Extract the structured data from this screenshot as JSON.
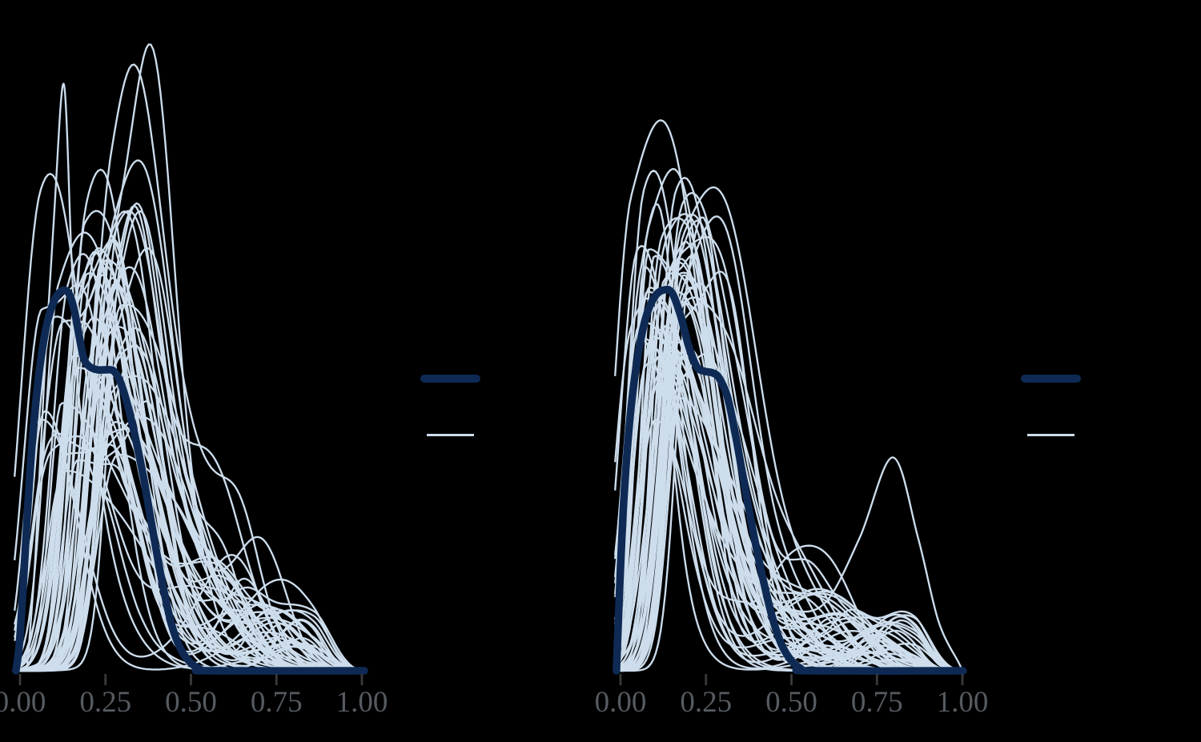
{
  "figure": {
    "background": "#000000",
    "title": ""
  },
  "colors": {
    "y_line": "#0e2a54",
    "y_rep_line": "#cdddec",
    "tick_mark": "#3a3a3a",
    "tick_label": "#555b61"
  },
  "legend": {
    "items": [
      {
        "id": "y",
        "label": "",
        "swatch": "thick-dark-line"
      },
      {
        "id": "y_rep",
        "label": "",
        "swatch": "thin-light-line"
      }
    ]
  },
  "chart_data": {
    "type": "area",
    "subtype": "density_overlay_ppc",
    "title": "",
    "xlabel": "",
    "ylabel": "",
    "x_range": [
      -0.02,
      1.01
    ],
    "y_range_density": [
      0,
      1.6
    ],
    "grid": false,
    "legend_position": "right-of-panel",
    "panels": [
      {
        "id": "panel-1",
        "x_axis": {
          "ticks": [
            0,
            0.25,
            0.5,
            0.75,
            1.0
          ],
          "tick_labels": [
            "0.00",
            "0.25",
            "0.50",
            "0.75",
            "1.00"
          ]
        },
        "series": [
          {
            "name": "y",
            "role": "observed",
            "points": [
              [
                -0.012,
                0
              ],
              [
                -0.002,
                0.069
              ],
              [
                0.009,
                0.216
              ],
              [
                0.021,
                0.406
              ],
              [
                0.037,
                0.616
              ],
              [
                0.056,
                0.784
              ],
              [
                0.077,
                0.903
              ],
              [
                0.101,
                0.973
              ],
              [
                0.124,
                0.998
              ],
              [
                0.143,
                0.99
              ],
              [
                0.159,
                0.945
              ],
              [
                0.173,
                0.878
              ],
              [
                0.187,
                0.819
              ],
              [
                0.204,
                0.798
              ],
              [
                0.227,
                0.79
              ],
              [
                0.251,
                0.79
              ],
              [
                0.272,
                0.788
              ],
              [
                0.288,
                0.769
              ],
              [
                0.304,
                0.731
              ],
              [
                0.323,
                0.668
              ],
              [
                0.344,
                0.584
              ],
              [
                0.365,
                0.489
              ],
              [
                0.391,
                0.353
              ],
              [
                0.417,
                0.227
              ],
              [
                0.443,
                0.122
              ],
              [
                0.471,
                0.055
              ],
              [
                0.499,
                0.021
              ],
              [
                0.527,
                0.004
              ],
              [
                0.555,
                0
              ],
              [
                1.007,
                0
              ]
            ]
          }
        ],
        "feature_rep_lines": [
          [
            [
              0.02,
              0
            ],
            [
              0.045,
              0.3
            ],
            [
              0.07,
              0.75
            ],
            [
              0.1,
              1.2
            ],
            [
              0.128,
              1.54
            ],
            [
              0.15,
              1.1
            ],
            [
              0.165,
              0.8
            ],
            [
              0.185,
              0.62
            ],
            [
              0.21,
              0.52
            ],
            [
              0.245,
              0.47
            ],
            [
              0.275,
              0.38
            ],
            [
              0.31,
              0.26
            ],
            [
              0.35,
              0.15
            ],
            [
              0.4,
              0.07
            ],
            [
              0.47,
              0.025
            ],
            [
              0.56,
              0.008
            ],
            [
              0.68,
              0
            ]
          ],
          [
            [
              -0.01,
              0
            ],
            [
              0.02,
              0.25
            ],
            [
              0.06,
              0.52
            ],
            [
              0.1,
              0.62
            ],
            [
              0.15,
              0.6
            ],
            [
              0.2,
              0.58
            ],
            [
              0.25,
              0.62
            ],
            [
              0.3,
              0.78
            ],
            [
              0.335,
              0.857
            ],
            [
              0.37,
              0.78
            ],
            [
              0.41,
              0.58
            ],
            [
              0.46,
              0.36
            ],
            [
              0.52,
              0.18
            ],
            [
              0.6,
              0.07
            ],
            [
              0.7,
              0.02
            ],
            [
              0.82,
              0
            ]
          ]
        ],
        "rep_generation": {
          "count": 52,
          "seed": 20240915,
          "peak_x_range": [
            0.045,
            0.3
          ],
          "peak_h_range": [
            0.5,
            1.08
          ],
          "left_width_range": [
            0.035,
            0.065
          ],
          "right_width_range": [
            0.09,
            0.19
          ],
          "body_bump_prob": 0.6,
          "tail_bump_h_max": 0.15
        }
      },
      {
        "id": "panel-2",
        "x_axis": {
          "ticks": [
            0,
            0.25,
            0.5,
            0.75,
            1.0
          ],
          "tick_labels": [
            "0.00",
            "0.25",
            "0.50",
            "0.75",
            "1.00"
          ]
        },
        "series": [
          {
            "name": "y",
            "role": "observed",
            "points": [
              [
                -0.012,
                0
              ],
              [
                -0.002,
                0.227
              ],
              [
                0.009,
                0.437
              ],
              [
                0.026,
                0.647
              ],
              [
                0.047,
                0.805
              ],
              [
                0.073,
                0.924
              ],
              [
                0.101,
                0.983
              ],
              [
                0.129,
                1.0
              ],
              [
                0.152,
                0.99
              ],
              [
                0.176,
                0.931
              ],
              [
                0.199,
                0.853
              ],
              [
                0.223,
                0.798
              ],
              [
                0.246,
                0.786
              ],
              [
                0.269,
                0.782
              ],
              [
                0.288,
                0.769
              ],
              [
                0.312,
                0.721
              ],
              [
                0.335,
                0.626
              ],
              [
                0.358,
                0.511
              ],
              [
                0.386,
                0.374
              ],
              [
                0.415,
                0.248
              ],
              [
                0.443,
                0.143
              ],
              [
                0.471,
                0.069
              ],
              [
                0.499,
                0.027
              ],
              [
                0.527,
                0.006
              ],
              [
                0.555,
                0
              ],
              [
                1.002,
                0
              ]
            ]
          }
        ],
        "feature_rep_lines": [
          [
            [
              -0.01,
              0
            ],
            [
              0.03,
              0.45
            ],
            [
              0.07,
              0.8
            ],
            [
              0.11,
              0.84
            ],
            [
              0.16,
              0.7
            ],
            [
              0.22,
              0.52
            ],
            [
              0.3,
              0.34
            ],
            [
              0.4,
              0.22
            ],
            [
              0.5,
              0.16
            ],
            [
              0.6,
              0.18
            ],
            [
              0.7,
              0.35
            ],
            [
              0.796,
              0.56
            ],
            [
              0.87,
              0.35
            ],
            [
              0.93,
              0.13
            ],
            [
              0.99,
              0.02
            ],
            [
              1.0,
              0
            ]
          ]
        ],
        "rep_generation": {
          "count": 53,
          "seed": 987654,
          "peak_x_range": [
            0.03,
            0.2
          ],
          "peak_h_range": [
            0.6,
            1.12
          ],
          "left_width_range": [
            0.035,
            0.06
          ],
          "right_width_range": [
            0.09,
            0.17
          ],
          "body_bump_prob": 0.55,
          "tail_bump_h_max": 0.14
        }
      }
    ]
  }
}
